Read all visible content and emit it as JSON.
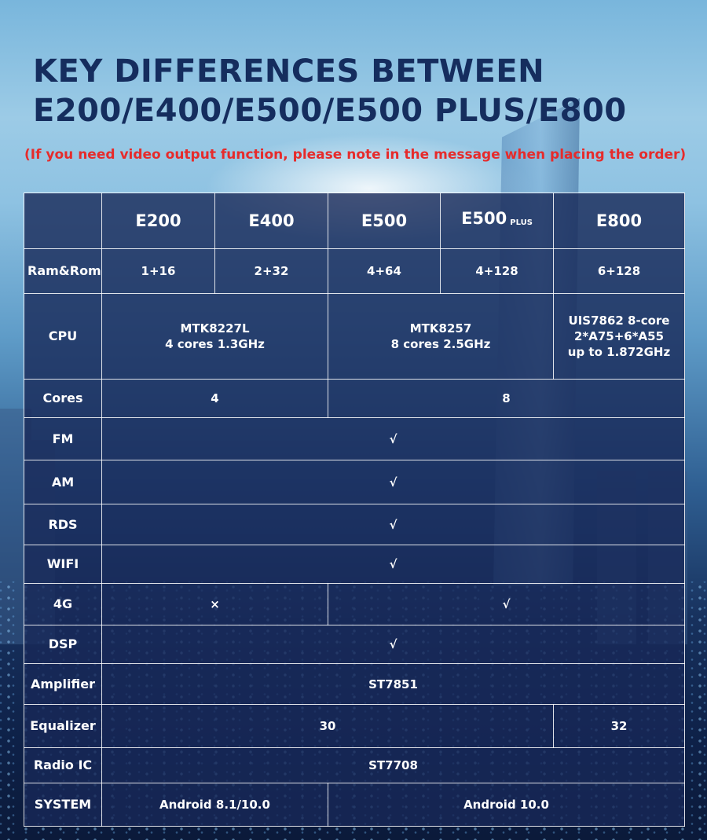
{
  "title_line1": "KEY DIFFERENCES BETWEEN",
  "title_line2": "E200/E400/E500/E500 PLUS/E800",
  "note": "(If you need video output function, please note in the message when placing the order)",
  "columns": {
    "e200": "E200",
    "e400": "E400",
    "e500": "E500",
    "e500plus": "E500",
    "e500plus_suffix": "PLUS",
    "e800": "E800"
  },
  "rows": {
    "ram_rom": {
      "label": "Ram&Rom",
      "e200": "1+16",
      "e400": "2+32",
      "e500": "4+64",
      "e500plus": "4+128",
      "e800": "6+128"
    },
    "cpu": {
      "label": "CPU",
      "e200_e400": "MTK8227L\n4 cores 1.3GHz",
      "e500_plus": "MTK8257\n8 cores 2.5GHz",
      "e800": "UIS7862 8-core\n2*A75+6*A55\nup to 1.872GHz"
    },
    "cores": {
      "label": "Cores",
      "e200_e400": "4",
      "e500_e800": "8"
    },
    "fm": {
      "label": "FM",
      "all": "√"
    },
    "am": {
      "label": "AM",
      "all": "√"
    },
    "rds": {
      "label": "RDS",
      "all": "√"
    },
    "wifi": {
      "label": "WIFI",
      "all": "√"
    },
    "g4": {
      "label": "4G",
      "e200_e400": "×",
      "e500_e800": "√"
    },
    "dsp": {
      "label": "DSP",
      "all": "√"
    },
    "amplifier": {
      "label": "Amplifier",
      "all": "ST7851"
    },
    "equalizer": {
      "label": "Equalizer",
      "e200_plus": "30",
      "e800": "32"
    },
    "radio_ic": {
      "label": "Radio IC",
      "all": "ST7708"
    },
    "system": {
      "label": "SYSTEM",
      "e200_e400": "Android 8.1/10.0",
      "e500_e800": "Android 10.0"
    }
  },
  "colors": {
    "title": "#152d5e",
    "note": "#e62b2b",
    "cell_bg": "#182858",
    "grid": "#ffffff"
  }
}
